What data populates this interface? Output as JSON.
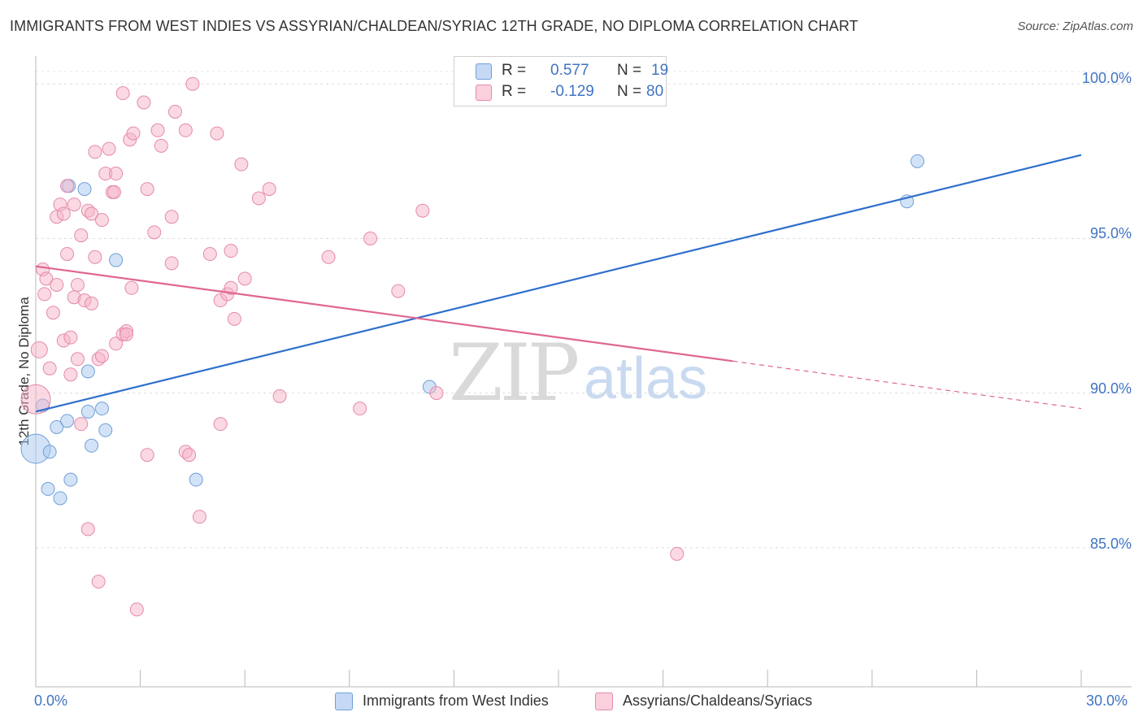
{
  "chart_data": {
    "type": "scatter",
    "title": "IMMIGRANTS FROM WEST INDIES VS ASSYRIAN/CHALDEAN/SYRIAC 12TH GRADE, NO DIPLOMA CORRELATION CHART",
    "source": "Source: ZipAtlas.com",
    "xlabel": "",
    "ylabel": "12th Grade, No Diploma",
    "xlim": [
      0,
      30
    ],
    "ylim": [
      80.5,
      100.9
    ],
    "x_tick_labels": {
      "min": "0.0%",
      "max": "30.0%"
    },
    "y_ticks": [
      {
        "value": 100,
        "label": "100.0%"
      },
      {
        "value": 95,
        "label": "95.0%"
      },
      {
        "value": 90,
        "label": "90.0%"
      },
      {
        "value": 85,
        "label": "85.0%"
      }
    ],
    "grid": true,
    "watermark": "ZIPatlas",
    "legend": {
      "r_label": "R =",
      "n_label": "N =",
      "entries": [
        {
          "name": "Immigrants from West Indies",
          "r": "0.577",
          "n": "19",
          "color": "#a8c8f0"
        },
        {
          "name": "Assyrians/Chaldeans/Syriacs",
          "r": "-0.129",
          "n": "80",
          "color": "#f5b4c8"
        }
      ]
    },
    "series": [
      {
        "name": "Immigrants from West Indies",
        "color": "#a8c8f0",
        "stroke": "#6f9fd8",
        "line_color": "#2e6fcc",
        "trend": {
          "x0": 0.0,
          "y0": 89.4,
          "x1": 30.0,
          "y1": 97.7,
          "dashed_from": null
        },
        "points": [
          [
            0.0,
            88.2,
            18
          ],
          [
            0.2,
            89.6,
            8
          ],
          [
            0.4,
            88.1,
            8
          ],
          [
            0.6,
            88.9,
            8
          ],
          [
            0.9,
            89.1,
            8
          ],
          [
            0.95,
            96.7,
            8
          ],
          [
            1.4,
            96.6,
            8
          ],
          [
            1.5,
            89.4,
            8
          ],
          [
            1.6,
            88.3,
            8
          ],
          [
            1.9,
            89.5,
            8
          ],
          [
            2.0,
            88.8,
            8
          ],
          [
            2.3,
            94.3,
            8
          ],
          [
            0.35,
            86.9,
            8
          ],
          [
            0.7,
            86.6,
            8
          ],
          [
            1.0,
            87.2,
            8
          ],
          [
            1.5,
            90.7,
            8
          ],
          [
            4.6,
            87.2,
            8
          ],
          [
            11.3,
            90.2,
            8
          ],
          [
            25.0,
            96.2,
            8
          ],
          [
            25.3,
            97.5,
            8
          ]
        ]
      },
      {
        "name": "Assyrians/Chaldeans/Syriacs",
        "color": "#f5b4c8",
        "stroke": "#e58aa8",
        "line_color": "#e06690",
        "trend": {
          "x0": 0.0,
          "y0": 94.1,
          "x1": 30.0,
          "y1": 89.5,
          "dashed_from": 20.0
        },
        "points": [
          [
            0.0,
            89.8,
            18
          ],
          [
            0.1,
            91.4,
            10
          ],
          [
            0.2,
            94.0,
            8
          ],
          [
            0.25,
            93.2,
            8
          ],
          [
            0.3,
            93.7,
            8
          ],
          [
            0.4,
            90.8,
            8
          ],
          [
            0.5,
            92.6,
            8
          ],
          [
            0.6,
            93.5,
            8
          ],
          [
            0.6,
            95.7,
            8
          ],
          [
            0.7,
            96.1,
            8
          ],
          [
            0.8,
            95.8,
            8
          ],
          [
            0.8,
            91.7,
            8
          ],
          [
            0.9,
            96.7,
            8
          ],
          [
            0.9,
            94.5,
            8
          ],
          [
            1.0,
            91.8,
            8
          ],
          [
            1.0,
            90.6,
            8
          ],
          [
            1.1,
            93.1,
            8
          ],
          [
            1.1,
            96.1,
            8
          ],
          [
            1.2,
            91.1,
            8
          ],
          [
            1.2,
            93.5,
            8
          ],
          [
            1.3,
            95.1,
            8
          ],
          [
            1.3,
            89.0,
            8
          ],
          [
            1.4,
            93.0,
            8
          ],
          [
            1.5,
            95.9,
            8
          ],
          [
            1.5,
            85.6,
            8
          ],
          [
            1.6,
            92.9,
            8
          ],
          [
            1.6,
            95.8,
            8
          ],
          [
            1.7,
            97.8,
            8
          ],
          [
            1.7,
            94.4,
            8
          ],
          [
            1.8,
            91.1,
            8
          ],
          [
            1.8,
            83.9,
            8
          ],
          [
            1.9,
            95.6,
            8
          ],
          [
            1.9,
            91.2,
            8
          ],
          [
            2.0,
            97.1,
            8
          ],
          [
            2.1,
            97.9,
            8
          ],
          [
            2.2,
            96.5,
            8
          ],
          [
            2.25,
            96.5,
            8
          ],
          [
            2.3,
            97.1,
            8
          ],
          [
            2.3,
            91.6,
            8
          ],
          [
            2.5,
            91.9,
            8
          ],
          [
            2.5,
            99.7,
            8
          ],
          [
            2.6,
            92.0,
            8
          ],
          [
            2.6,
            91.9,
            8
          ],
          [
            2.7,
            98.2,
            8
          ],
          [
            2.75,
            93.4,
            8
          ],
          [
            2.8,
            98.4,
            8
          ],
          [
            2.9,
            83.0,
            8
          ],
          [
            3.1,
            99.4,
            8
          ],
          [
            3.2,
            96.6,
            8
          ],
          [
            3.2,
            88.0,
            8
          ],
          [
            3.4,
            95.2,
            8
          ],
          [
            3.5,
            98.5,
            8
          ],
          [
            3.6,
            98.0,
            8
          ],
          [
            3.9,
            95.7,
            8
          ],
          [
            3.9,
            94.2,
            8
          ],
          [
            4.0,
            99.1,
            8
          ],
          [
            4.3,
            98.5,
            8
          ],
          [
            4.3,
            88.1,
            8
          ],
          [
            4.4,
            88.0,
            8
          ],
          [
            4.5,
            100.0,
            8
          ],
          [
            4.7,
            86.0,
            8
          ],
          [
            5.0,
            94.5,
            8
          ],
          [
            5.2,
            98.4,
            8
          ],
          [
            5.3,
            89.0,
            8
          ],
          [
            5.3,
            93.0,
            8
          ],
          [
            5.5,
            93.2,
            8
          ],
          [
            5.6,
            93.4,
            8
          ],
          [
            5.6,
            94.6,
            8
          ],
          [
            5.7,
            92.4,
            8
          ],
          [
            5.9,
            97.4,
            8
          ],
          [
            6.0,
            93.7,
            8
          ],
          [
            6.4,
            96.3,
            8
          ],
          [
            6.7,
            96.6,
            8
          ],
          [
            7.0,
            89.9,
            8
          ],
          [
            8.4,
            94.4,
            8
          ],
          [
            9.3,
            89.5,
            8
          ],
          [
            9.6,
            95.0,
            8
          ],
          [
            10.4,
            93.3,
            8
          ],
          [
            11.1,
            95.9,
            8
          ],
          [
            11.5,
            90.0,
            8
          ],
          [
            18.4,
            84.8,
            8
          ]
        ]
      }
    ]
  }
}
